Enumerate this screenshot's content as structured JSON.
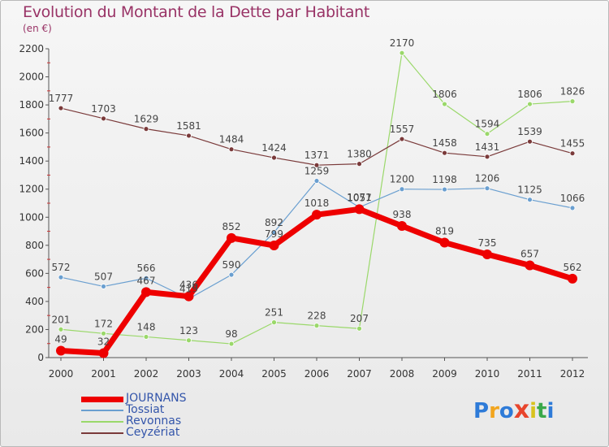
{
  "title": "Evolution du Montant de la Dette par Habitant",
  "subtitle": "(en €)",
  "logo": {
    "text": "Proxiti",
    "letter_colors": [
      "#2e7bd8",
      "#f2a51e",
      "#2e7bd8",
      "#e8452c",
      "#d8c21e",
      "#3aa84a",
      "#2e7bd8"
    ]
  },
  "colors": {
    "title": "#993366",
    "axis": "#555555",
    "tick_marks": "#cc3333",
    "JOURNANS": "#ee0000",
    "Tossiat": "#6a9fd0",
    "Revonnas": "#9ad86a",
    "Ceyzériat": "#7a3a3a"
  },
  "chart_data": {
    "type": "line",
    "title": "Evolution du Montant de la Dette par Habitant",
    "subtitle": "(en €)",
    "xlabel": "",
    "ylabel": "",
    "x": [
      "2000",
      "2001",
      "2002",
      "2003",
      "2004",
      "2005",
      "2006",
      "2007",
      "2008",
      "2009",
      "2010",
      "2011",
      "2012"
    ],
    "ylim": [
      0,
      2200
    ],
    "yticks": [
      0,
      200,
      400,
      600,
      800,
      1000,
      1200,
      1400,
      1600,
      1800,
      2000,
      2200
    ],
    "grid": false,
    "legend_position": "bottom-left",
    "series": [
      {
        "name": "JOURNANS",
        "values": [
          49,
          32,
          467,
          436,
          852,
          799,
          1018,
          1057,
          938,
          819,
          735,
          657,
          562
        ]
      },
      {
        "name": "Tossiat",
        "values": [
          572,
          507,
          566,
          419,
          590,
          892,
          1259,
          1071,
          1200,
          1198,
          1206,
          1125,
          1066
        ]
      },
      {
        "name": "Revonnas",
        "values": [
          201,
          172,
          148,
          123,
          98,
          251,
          228,
          207,
          2170,
          1806,
          1594,
          1806,
          1826
        ]
      },
      {
        "name": "Ceyzériat",
        "values": [
          1777,
          1703,
          1629,
          1581,
          1484,
          1424,
          1371,
          1380,
          1557,
          1458,
          1431,
          1539,
          1455
        ]
      }
    ]
  }
}
